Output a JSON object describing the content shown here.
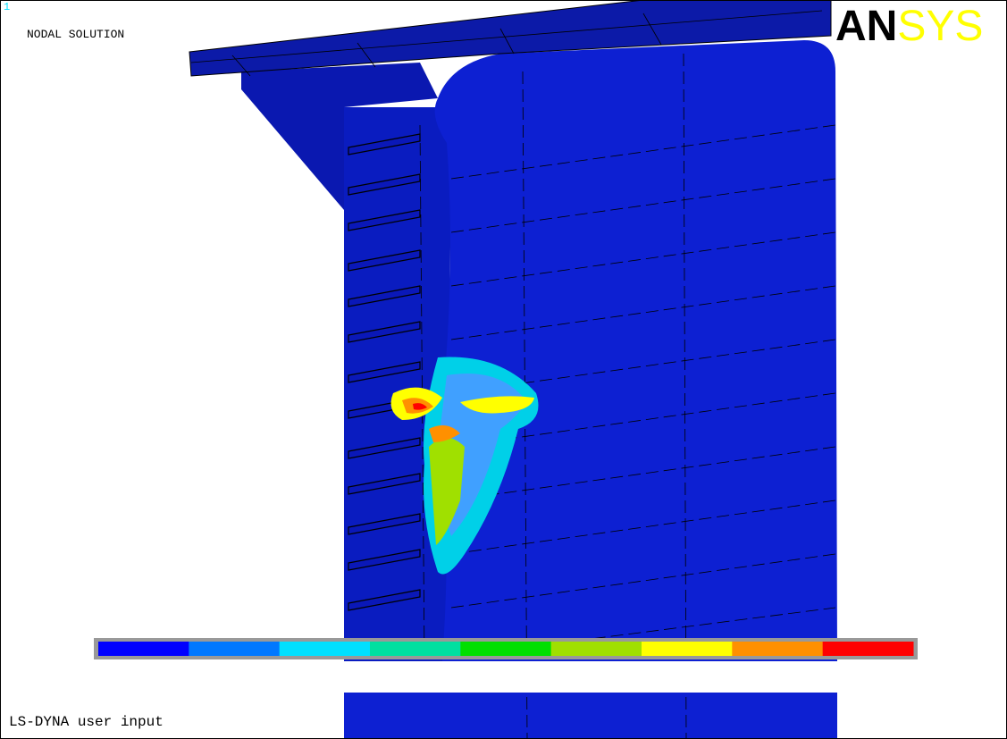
{
  "header": {
    "window_number": "1",
    "title": "NODAL SOLUTION",
    "logo_left": "AN",
    "logo_right": "SYS"
  },
  "legend": {
    "colors": [
      "#0000ff",
      "#0078ff",
      "#00e0ff",
      "#00e0a0",
      "#00e000",
      "#a0e000",
      "#ffff00",
      "#ff9000",
      "#ff0000"
    ]
  },
  "footer": {
    "text": "LS-DYNA user input"
  }
}
